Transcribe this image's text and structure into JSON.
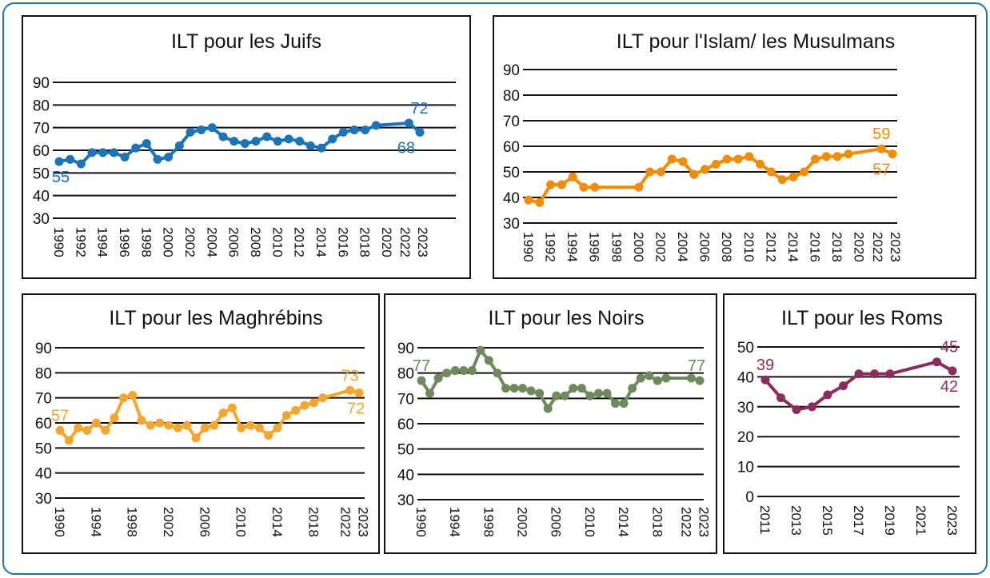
{
  "colors": {
    "frame": "#1b73b8",
    "juifs": "#1b73b8",
    "islam": "#f28c00",
    "maghrebins": "#f6a62c",
    "noirs": "#6e8a5c",
    "roms": "#8a2d5b"
  },
  "chart_data": [
    {
      "id": "juifs",
      "type": "line",
      "title": "ILT pour les Juifs",
      "color_key": "juifs",
      "ylim": [
        30,
        90
      ],
      "yticks": [
        90,
        80,
        70,
        60,
        50,
        40,
        30
      ],
      "xlim": [
        1990,
        2023
      ],
      "xticks": [
        1990,
        1992,
        1994,
        1996,
        1998,
        2000,
        2002,
        2004,
        2006,
        2008,
        2010,
        2012,
        2014,
        2016,
        2018,
        2020,
        2022,
        2023
      ],
      "x": [
        1990,
        1991,
        1992,
        1993,
        1994,
        1995,
        1996,
        1997,
        1998,
        1999,
        2000,
        2001,
        2002,
        2003,
        2004,
        2005,
        2006,
        2007,
        2008,
        2009,
        2010,
        2011,
        2012,
        2013,
        2014,
        2015,
        2016,
        2017,
        2018,
        2019,
        2022,
        2023
      ],
      "y": [
        55,
        56,
        54,
        59,
        59,
        59,
        57,
        61,
        63,
        56,
        57,
        62,
        68,
        69,
        70,
        66,
        64,
        63,
        64,
        66,
        64,
        65,
        64,
        62,
        61,
        65,
        68,
        69,
        69,
        71,
        72,
        68
      ],
      "annotations": [
        {
          "text": "55",
          "x": 1990,
          "y": 55,
          "pos": "below"
        },
        {
          "text": "72",
          "x": 2022,
          "y": 72,
          "pos": "above-right"
        },
        {
          "text": "68",
          "x": 2023,
          "y": 68,
          "pos": "below-left"
        }
      ]
    },
    {
      "id": "islam",
      "type": "line",
      "title": "ILT pour l'Islam/ les Musulmans",
      "color_key": "islam",
      "ylim": [
        30,
        90
      ],
      "yticks": [
        90,
        80,
        70,
        60,
        50,
        40,
        30
      ],
      "xlim": [
        1990,
        2023
      ],
      "xticks": [
        1990,
        1992,
        1994,
        1996,
        1998,
        2000,
        2002,
        2004,
        2006,
        2008,
        2010,
        2012,
        2014,
        2016,
        2018,
        2020,
        2022,
        2023
      ],
      "x": [
        1990,
        1991,
        1992,
        1993,
        1994,
        1995,
        1996,
        2000,
        2001,
        2002,
        2003,
        2004,
        2005,
        2006,
        2007,
        2008,
        2009,
        2010,
        2011,
        2012,
        2013,
        2014,
        2015,
        2016,
        2017,
        2018,
        2019,
        2022,
        2023
      ],
      "y": [
        39,
        38,
        45,
        45,
        48,
        44,
        44,
        44,
        50,
        50,
        55,
        54,
        49,
        51,
        53,
        55,
        55,
        56,
        53,
        50,
        47,
        48,
        50,
        55,
        56,
        56,
        57,
        59,
        57
      ],
      "annotations": [
        {
          "text": "59",
          "x": 2022,
          "y": 59,
          "pos": "above"
        },
        {
          "text": "57",
          "x": 2022,
          "y": 57,
          "pos": "below"
        }
      ]
    },
    {
      "id": "maghrebins",
      "type": "line",
      "title": "ILT pour les Maghrébins",
      "color_key": "maghrebins",
      "ylim": [
        30,
        90
      ],
      "yticks": [
        90,
        80,
        70,
        60,
        50,
        40,
        30
      ],
      "xlim": [
        1990,
        2023
      ],
      "xticks": [
        1990,
        1994,
        1998,
        2002,
        2006,
        2010,
        2014,
        2018,
        2022,
        2023
      ],
      "x": [
        1990,
        1991,
        1992,
        1993,
        1994,
        1995,
        1996,
        1997,
        1998,
        1999,
        2000,
        2001,
        2002,
        2003,
        2004,
        2005,
        2006,
        2007,
        2008,
        2009,
        2010,
        2011,
        2012,
        2013,
        2014,
        2015,
        2016,
        2017,
        2018,
        2019,
        2022,
        2023
      ],
      "y": [
        57,
        53,
        58,
        57,
        60,
        57,
        62,
        70,
        71,
        61,
        59,
        60,
        59,
        58,
        59,
        54,
        58,
        59,
        64,
        66,
        58,
        59,
        58,
        55,
        58,
        63,
        65,
        67,
        68,
        70,
        73,
        72
      ],
      "annotations": [
        {
          "text": "57",
          "x": 1990,
          "y": 57,
          "pos": "above"
        },
        {
          "text": "73",
          "x": 2022,
          "y": 73,
          "pos": "above"
        },
        {
          "text": "72",
          "x": 2023,
          "y": 72,
          "pos": "below"
        }
      ]
    },
    {
      "id": "noirs",
      "type": "line",
      "title": "ILT pour les Noirs",
      "color_key": "noirs",
      "ylim": [
        30,
        90
      ],
      "yticks": [
        90,
        80,
        70,
        60,
        50,
        40,
        30
      ],
      "xlim": [
        1990,
        2023
      ],
      "xticks": [
        1990,
        1994,
        1998,
        2002,
        2006,
        2010,
        2014,
        2018,
        2022,
        2023
      ],
      "x": [
        1990,
        1991,
        1992,
        1993,
        1994,
        1995,
        1996,
        1997,
        1998,
        1999,
        2000,
        2001,
        2002,
        2003,
        2004,
        2005,
        2006,
        2007,
        2008,
        2009,
        2010,
        2011,
        2012,
        2013,
        2014,
        2015,
        2016,
        2017,
        2018,
        2019,
        2022,
        2023
      ],
      "y": [
        77,
        72,
        78,
        80,
        81,
        81,
        81,
        89,
        85,
        80,
        74,
        74,
        74,
        73,
        72,
        66,
        71,
        71,
        74,
        74,
        71,
        72,
        72,
        68,
        68,
        74,
        78,
        79,
        77,
        78,
        78,
        77
      ],
      "annotations": [
        {
          "text": "77",
          "x": 1990,
          "y": 77,
          "pos": "above"
        },
        {
          "text": "77",
          "x": 2023,
          "y": 77,
          "pos": "above"
        }
      ]
    },
    {
      "id": "roms",
      "type": "line",
      "title": "ILT pour les Roms",
      "color_key": "roms",
      "ylim": [
        0,
        50
      ],
      "yticks": [
        50,
        40,
        30,
        20,
        10,
        0
      ],
      "xlim": [
        2011,
        2023
      ],
      "xticks": [
        2011,
        2013,
        2015,
        2017,
        2019,
        2021,
        2023
      ],
      "x": [
        2011,
        2012,
        2013,
        2014,
        2015,
        2016,
        2017,
        2018,
        2019,
        2022,
        2023
      ],
      "y": [
        39,
        33,
        29,
        30,
        34,
        37,
        41,
        41,
        41,
        45,
        42
      ],
      "annotations": [
        {
          "text": "39",
          "x": 2011,
          "y": 39,
          "pos": "above"
        },
        {
          "text": "45",
          "x": 2023,
          "y": 45,
          "pos": "above"
        },
        {
          "text": "42",
          "x": 2023,
          "y": 42,
          "pos": "below"
        }
      ]
    }
  ]
}
